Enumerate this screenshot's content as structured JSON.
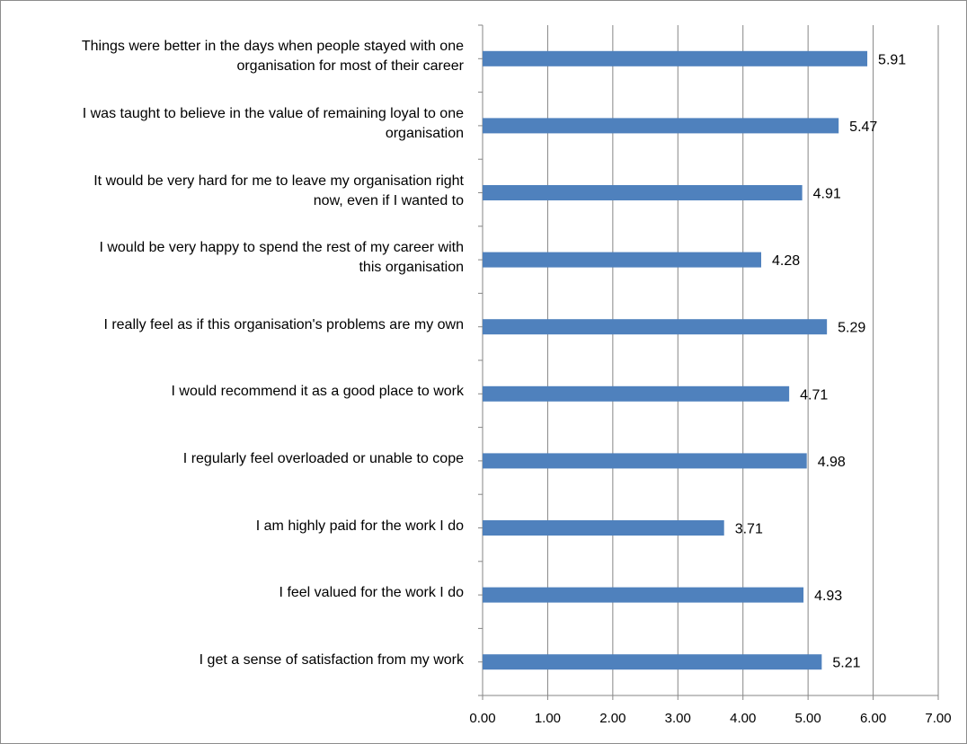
{
  "chart_data": {
    "type": "bar",
    "orientation": "horizontal",
    "categories": [
      "Things were better in the days when people stayed with one organisation for most of their career",
      "I was taught to believe in the value of remaining loyal to one organisation",
      "It would be very hard for me to leave my organisation right now, even if I wanted to",
      "I would be very happy to spend the rest of my career with this organisation",
      "I really feel as if this organisation's problems are my own",
      "I would recommend it as a good place to work",
      "I regularly feel overloaded or unable to cope",
      "I am highly paid for the work I do",
      "I feel valued for the work I do",
      "I get a sense of satisfaction from my work"
    ],
    "category_label_lines": [
      [
        "Things were better in the days when people stayed with one",
        "organisation for most of their career"
      ],
      [
        "I was taught to believe in the value of remaining loyal to one",
        "organisation"
      ],
      [
        "It would be very hard for me to leave my organisation right",
        "now, even if I wanted to"
      ],
      [
        "I would be very happy to spend the rest of my career with",
        "this organisation"
      ],
      [
        "I really feel as if this organisation's problems are my own"
      ],
      [
        "I would recommend it as a good place to work"
      ],
      [
        "I regularly feel overloaded or unable to cope"
      ],
      [
        "I am highly paid for the work I do"
      ],
      [
        "I feel valued for the work I do"
      ],
      [
        "I get a sense of satisfaction from my work"
      ]
    ],
    "values": [
      5.91,
      5.47,
      4.91,
      4.28,
      5.29,
      4.71,
      4.98,
      3.71,
      4.93,
      5.21
    ],
    "value_labels": [
      "5.91",
      "5.47",
      "4.91",
      "4.28",
      "5.29",
      "4.71",
      "4.98",
      "3.71",
      "4.93",
      "5.21"
    ],
    "xticks": [
      "0.00",
      "1.00",
      "2.00",
      "3.00",
      "4.00",
      "5.00",
      "6.00",
      "7.00"
    ],
    "xlim": [
      0,
      7
    ],
    "title": "",
    "xlabel": "",
    "ylabel": "",
    "grid": "vertical",
    "legend": "none",
    "bar_color": "#4f81bd",
    "grid_color": "#868686"
  }
}
